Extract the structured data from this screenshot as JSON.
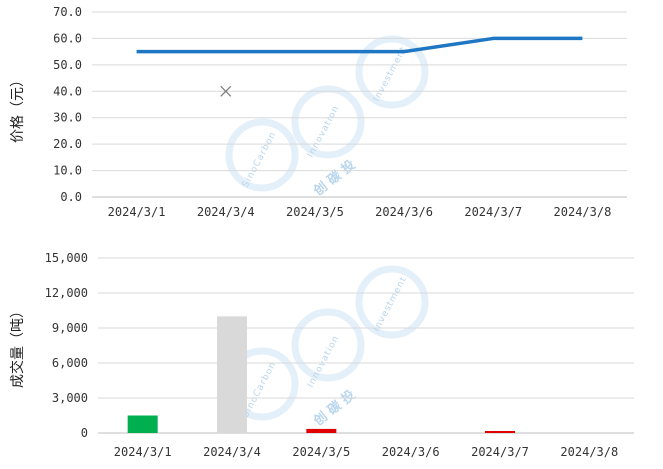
{
  "watermark": {
    "brand": "SinoCarbon",
    "word1": "Innovation",
    "word2": "Investment",
    "cn": "创 碳 投"
  },
  "chart_data": [
    {
      "type": "line",
      "ylabel": "价格（元）",
      "ylim": [
        0,
        70
      ],
      "yticks": [
        0,
        10,
        20,
        30,
        40,
        50,
        60,
        70
      ],
      "ytick_labels": [
        "0.0",
        "10.0",
        "20.0",
        "30.0",
        "40.0",
        "50.0",
        "60.0",
        "70.0"
      ],
      "categories": [
        "2024/3/1",
        "2024/3/4",
        "2024/3/5",
        "2024/3/6",
        "2024/3/7",
        "2024/3/8"
      ],
      "series": [
        {
          "values": [
            55,
            55,
            55,
            55,
            60,
            60
          ],
          "color": "#1f77c4"
        }
      ],
      "markers": [
        {
          "x": "2024/3/4",
          "y": 40,
          "symbol": "x",
          "color": "#7f7f7f"
        }
      ],
      "grid": true
    },
    {
      "type": "bar",
      "ylabel": "成交量（吨）",
      "ylim": [
        0,
        15000
      ],
      "yticks": [
        0,
        3000,
        6000,
        9000,
        12000,
        15000
      ],
      "ytick_labels": [
        "0",
        "3,000",
        "6,000",
        "9,000",
        "12,000",
        "15,000"
      ],
      "categories": [
        "2024/3/1",
        "2024/3/4",
        "2024/3/5",
        "2024/3/6",
        "2024/3/7",
        "2024/3/8"
      ],
      "values": [
        1500,
        10000,
        350,
        0,
        150,
        0
      ],
      "colors": [
        "#00b050",
        "#d9d9d9",
        "#e00000",
        "#e00000",
        "#e00000",
        "#e00000"
      ],
      "grid": true
    }
  ]
}
